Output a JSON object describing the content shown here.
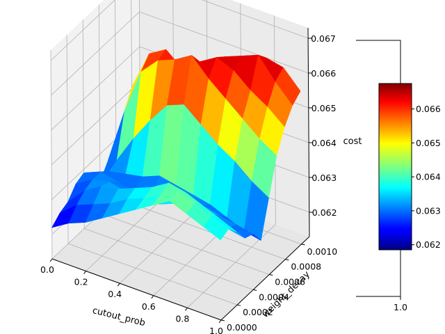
{
  "chart_data": {
    "type": "surface3d",
    "title": "",
    "colormap": "jet",
    "x_axis": {
      "label": "cutout_prob",
      "range": [
        0.0,
        1.0
      ],
      "ticks": [
        "0.0",
        "0.2",
        "0.4",
        "0.6",
        "0.8",
        "1.0"
      ]
    },
    "y_axis": {
      "label": "weight_decay",
      "range": [
        0.0,
        0.0011
      ],
      "ticks": [
        "0.0000",
        "0.0002",
        "0.0004",
        "0.0006",
        "0.0008",
        "0.0010"
      ]
    },
    "z_axis": {
      "label": "cost",
      "range": [
        0.0613,
        0.0673
      ],
      "ticks": [
        "0.062",
        "0.063",
        "0.064",
        "0.065",
        "0.066",
        "0.067"
      ]
    },
    "colorbar": {
      "range": [
        0.06185,
        0.06675
      ],
      "ticks": [
        "0.062",
        "0.063",
        "0.064",
        "0.065",
        "0.066"
      ],
      "secondary_label": "1.0"
    },
    "x": [
      0.0,
      0.1,
      0.2,
      0.3,
      0.4,
      0.5,
      0.6,
      0.7,
      0.8,
      0.9,
      1.0
    ],
    "y": [
      0.0,
      0.0001,
      0.0002,
      0.0003,
      0.0004,
      0.0005,
      0.0006,
      0.0007,
      0.0008,
      0.0009,
      0.001
    ],
    "z": [
      [
        0.0622,
        0.0625,
        0.0627,
        0.063,
        0.0633,
        0.0636,
        0.0639,
        0.0642,
        0.064,
        0.0638,
        0.0636
      ],
      [
        0.0624,
        0.0628,
        0.063,
        0.0632,
        0.0635,
        0.0637,
        0.064,
        0.0643,
        0.0641,
        0.0639,
        0.0637
      ],
      [
        0.0625,
        0.063,
        0.0633,
        0.0634,
        0.0636,
        0.0638,
        0.0641,
        0.064,
        0.0638,
        0.0636,
        0.0634
      ],
      [
        0.0628,
        0.0631,
        0.0632,
        0.0631,
        0.063,
        0.0631,
        0.0633,
        0.0635,
        0.0633,
        0.0631,
        0.063
      ],
      [
        0.0629,
        0.0631,
        0.063,
        0.0629,
        0.0629,
        0.063,
        0.0631,
        0.0632,
        0.0631,
        0.063,
        0.0629
      ],
      [
        0.0627,
        0.0629,
        0.063,
        0.0631,
        0.0633,
        0.0632,
        0.0631,
        0.063,
        0.0628,
        0.0626,
        0.0625
      ],
      [
        0.0622,
        0.063,
        0.0638,
        0.0645,
        0.0651,
        0.0653,
        0.0649,
        0.0645,
        0.0642,
        0.0638,
        0.0635
      ],
      [
        0.0626,
        0.0642,
        0.0655,
        0.066,
        0.0662,
        0.0665,
        0.066,
        0.0656,
        0.0652,
        0.0648,
        0.0645
      ],
      [
        0.0629,
        0.0647,
        0.0658,
        0.0661,
        0.0657,
        0.0661,
        0.0664,
        0.0662,
        0.0658,
        0.0655,
        0.0651
      ],
      [
        0.0624,
        0.0638,
        0.065,
        0.0655,
        0.0652,
        0.0657,
        0.0662,
        0.0664,
        0.0666,
        0.066,
        0.0655
      ],
      [
        0.0621,
        0.063,
        0.0643,
        0.0647,
        0.0645,
        0.0652,
        0.0656,
        0.066,
        0.0663,
        0.0662,
        0.0657
      ]
    ]
  }
}
